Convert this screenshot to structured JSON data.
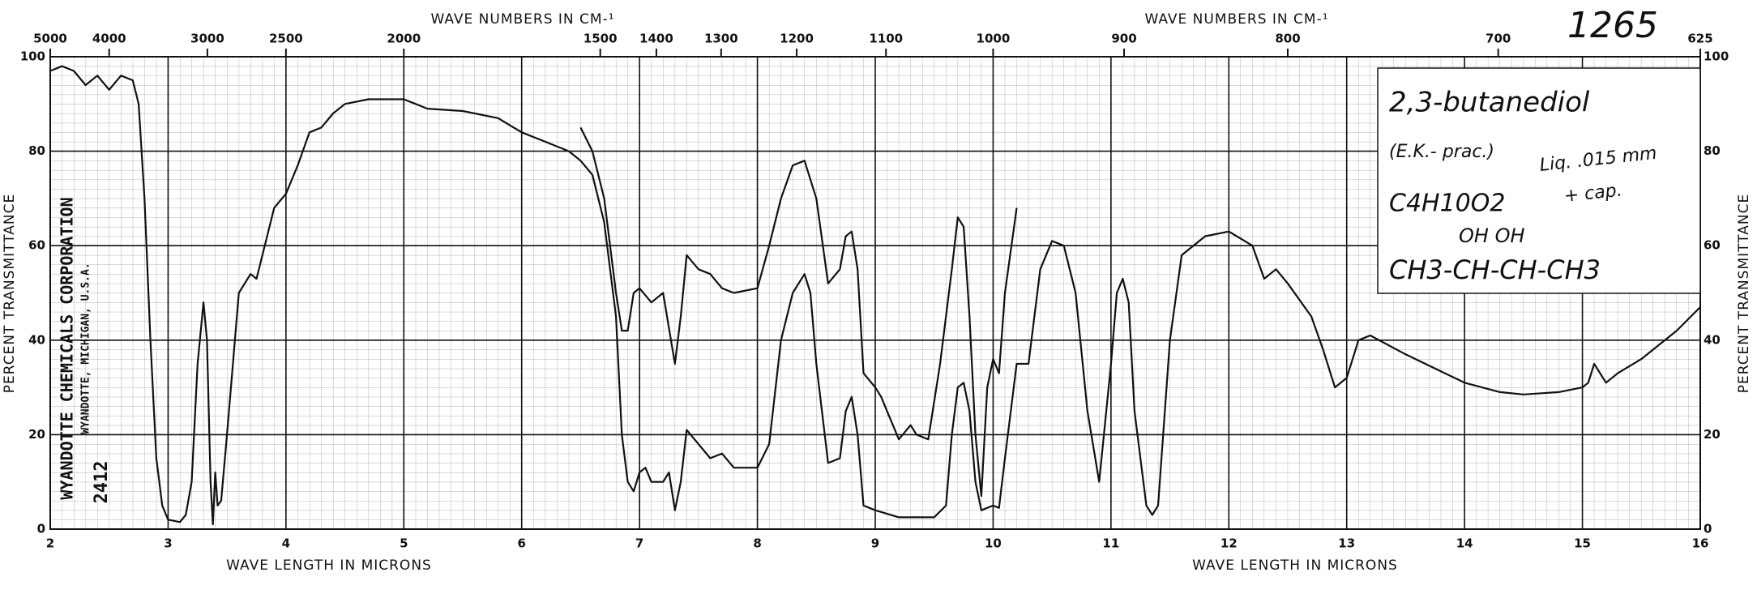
{
  "chart_data": {
    "type": "line",
    "top_titles": [
      "WAVE NUMBERS IN CM-¹",
      "WAVE NUMBERS IN CM-¹"
    ],
    "x_titles": [
      "WAVE LENGTH IN MICRONS",
      "WAVE LENGTH IN MICRONS"
    ],
    "y_title": "PERCENT TRANSMITTANCE",
    "sheet_number": "1265",
    "maker": "WYANDOTTE CHEMICALS CORPORATION",
    "maker_address": "WYANDOTTE, MICHIGAN, U.S.A.",
    "stamp": "2412",
    "annotations": {
      "compound": "2,3-butanediol",
      "source": "(E.K.- prac.)",
      "formula": "C4H10O2",
      "sample": "Liq. .015 mm",
      "cell": "+ cap.",
      "hydroxyls": "OH  OH",
      "structure": "CH3-CH-CH-CH3"
    },
    "xlim": [
      2,
      16
    ],
    "ylim": [
      0,
      100
    ],
    "xticks": [
      2,
      3,
      4,
      5,
      6,
      7,
      8,
      9,
      10,
      11,
      12,
      13,
      14,
      15,
      16
    ],
    "yticks": [
      0,
      20,
      40,
      60,
      80,
      100
    ],
    "x2ticks": [
      5000,
      4000,
      3000,
      2500,
      2000,
      1500,
      1400,
      1300,
      1200,
      1100,
      1000,
      900,
      800,
      700,
      625
    ],
    "grid": true,
    "series": [
      {
        "color": "#111111",
        "x": [
          2.0,
          2.1,
          2.2,
          2.3,
          2.4,
          2.5,
          2.6,
          2.7,
          2.75,
          2.8,
          2.85,
          2.9,
          2.95,
          3.0,
          3.1,
          3.15,
          3.2,
          3.25,
          3.3,
          3.33,
          3.36,
          3.38,
          3.4,
          3.42,
          3.45,
          3.5,
          3.6,
          3.7,
          3.75,
          3.8,
          3.9,
          4.0,
          4.1,
          4.2,
          4.3,
          4.4,
          4.5,
          4.7,
          5.0,
          5.2,
          5.5,
          5.8,
          6.0,
          6.2,
          6.4,
          6.5,
          6.6,
          6.7,
          6.8,
          6.85,
          6.9,
          6.95,
          7.0,
          7.05,
          7.1,
          7.2,
          7.25,
          7.3,
          7.35,
          7.4,
          7.5,
          7.6,
          7.7,
          7.8,
          8.0,
          8.1,
          8.2,
          8.3,
          8.4,
          8.45,
          8.5,
          8.6,
          8.7,
          8.75,
          8.8,
          8.85,
          8.9,
          9.0,
          9.2,
          9.5,
          9.6,
          9.65,
          9.7,
          9.75,
          9.8,
          9.85,
          9.9,
          10.0,
          10.05,
          10.1,
          10.2,
          10.3,
          10.4,
          10.5,
          10.6,
          10.7,
          10.8,
          10.9,
          11.0,
          11.05,
          11.1,
          11.15,
          11.2,
          11.3,
          11.35,
          11.4,
          11.5,
          11.6,
          11.8,
          12.0,
          12.2,
          12.3,
          12.4,
          12.5,
          12.7,
          12.8,
          12.9,
          13.0,
          13.1,
          13.2,
          13.5,
          14.0,
          14.3,
          14.5,
          14.8,
          15.0,
          15.05,
          15.1,
          15.2,
          15.3,
          15.5,
          15.8,
          16.0
        ],
        "values": [
          97,
          98,
          97,
          94,
          96,
          93,
          96,
          95,
          90,
          70,
          40,
          15,
          5,
          2,
          1.5,
          3,
          10,
          35,
          48,
          40,
          10,
          1,
          12,
          5,
          6,
          20,
          50,
          54,
          53,
          58,
          68,
          71,
          77,
          84,
          85,
          88,
          90,
          91,
          91,
          89,
          88.5,
          87,
          84,
          82,
          80,
          78,
          75,
          65,
          45,
          20,
          10,
          8,
          12,
          13,
          10,
          10,
          12,
          4,
          10,
          21,
          18,
          15,
          16,
          13,
          13,
          18,
          40,
          50,
          54,
          50,
          35,
          14,
          15,
          25,
          28,
          20,
          5,
          4,
          2.5,
          2.5,
          5,
          20,
          30,
          31,
          25,
          10,
          4,
          5,
          4.5,
          15,
          35,
          35,
          55,
          61,
          60,
          50,
          25,
          10,
          35,
          50,
          53,
          48,
          25,
          5,
          3,
          5,
          40,
          58,
          62,
          63,
          60,
          53,
          55,
          52,
          45,
          38,
          30,
          32,
          40,
          41,
          37,
          31,
          29,
          28.5,
          29,
          30,
          31,
          35,
          31,
          33,
          36,
          42,
          47
        ]
      },
      {
        "color": "#111111",
        "x": [
          6.5,
          6.6,
          6.7,
          6.8,
          6.85,
          6.9,
          6.95,
          7.0,
          7.1,
          7.2,
          7.3,
          7.35,
          7.4,
          7.5,
          7.6,
          7.7,
          7.8,
          8.0,
          8.1,
          8.2,
          8.3,
          8.4,
          8.5,
          8.6,
          8.7,
          8.75,
          8.8,
          8.85,
          8.9,
          9.0,
          9.05,
          9.1,
          9.2,
          9.3,
          9.35,
          9.45,
          9.55,
          9.65,
          9.7,
          9.75,
          9.8,
          9.85,
          9.9,
          9.95,
          10.0,
          10.05,
          10.1,
          10.2
        ],
        "values": [
          85,
          80,
          70,
          50,
          42,
          42,
          50,
          51,
          48,
          50,
          35,
          45,
          58,
          55,
          54,
          51,
          50,
          51,
          60,
          70,
          77,
          78,
          70,
          52,
          55,
          62,
          63,
          55,
          33,
          30,
          28,
          25,
          19,
          22,
          20,
          19,
          35,
          55,
          66,
          64,
          45,
          20,
          7,
          30,
          36,
          33,
          50,
          68
        ]
      }
    ]
  }
}
